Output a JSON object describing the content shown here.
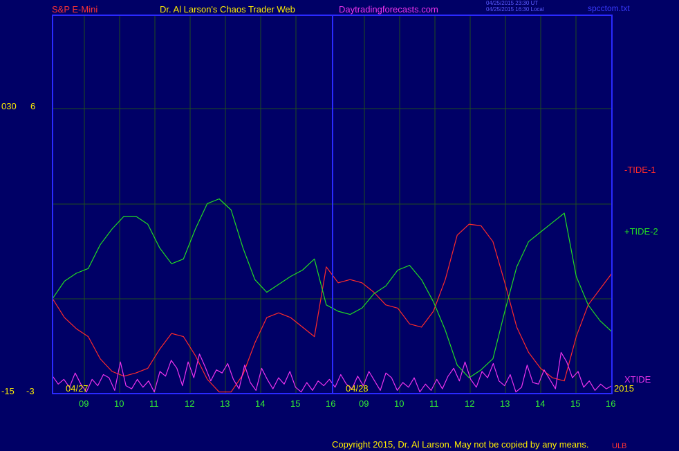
{
  "header": {
    "symbol": "S&P E-Mini",
    "title": "Dr. Al Larson's Chaos Trader Web",
    "site": "Daytradingforecasts.com",
    "ut_time": "04/25/2015 23:30 UT",
    "local_time": "04/25/2015 16:30 Local",
    "file": "spcctom.txt"
  },
  "footer": {
    "copyright": "Copyright 2015, Dr. Al Larson. May not be copied by any means.",
    "mark": "ULB"
  },
  "colors": {
    "background": "#000066",
    "plot_frame": "#2a2aff",
    "grid": "#1f4d1f",
    "tide1": "#ff2a2a",
    "tide2": "#22dd22",
    "xtide": "#ee33ee",
    "axis_text": "#ffee00",
    "hour_text": "#33ee33"
  },
  "chart_data": {
    "type": "line",
    "left_axis_labels": [
      {
        "outer": "030",
        "inner": "6",
        "value": 6
      },
      {
        "outer": "-15",
        "inner": "-3",
        "value": -3
      }
    ],
    "date_labels": [
      "04/27",
      "04/28"
    ],
    "year_label": "2015",
    "x_hour_labels": [
      "09",
      "10",
      "11",
      "12",
      "13",
      "14",
      "15",
      "16",
      "09",
      "10",
      "11",
      "12",
      "13",
      "14",
      "15",
      "16"
    ],
    "series": [
      {
        "name": "-TIDE-1",
        "color": "#ff2a2a",
        "values": [
          0.0,
          -0.6,
          -0.95,
          -1.2,
          -1.9,
          -2.3,
          -2.45,
          -2.35,
          -2.2,
          -1.6,
          -1.1,
          -1.2,
          -1.8,
          -2.55,
          -2.95,
          -2.95,
          -2.4,
          -1.4,
          -0.6,
          -0.45,
          -0.6,
          -0.9,
          -1.2,
          1.0,
          0.5,
          0.6,
          0.5,
          0.2,
          -0.2,
          -0.3,
          -0.8,
          -0.9,
          -0.4,
          0.6,
          2.0,
          2.35,
          2.3,
          1.8,
          0.5,
          -0.9,
          -1.7,
          -2.2,
          -2.5,
          -2.6,
          -1.2,
          -0.2,
          0.3,
          0.8
        ]
      },
      {
        "name": "+TIDE-2",
        "color": "#22dd22",
        "values": [
          0.0,
          0.55,
          0.8,
          0.95,
          1.7,
          2.2,
          2.6,
          2.6,
          2.35,
          1.6,
          1.1,
          1.25,
          2.2,
          3.0,
          3.15,
          2.8,
          1.6,
          0.6,
          0.2,
          0.45,
          0.7,
          0.9,
          1.25,
          -0.2,
          -0.4,
          -0.5,
          -0.3,
          0.15,
          0.4,
          0.9,
          1.05,
          0.6,
          -0.1,
          -1.0,
          -2.1,
          -2.5,
          -2.25,
          -1.9,
          -0.4,
          1.0,
          1.8,
          2.1,
          2.4,
          2.7,
          0.7,
          -0.2,
          -0.7,
          -1.05
        ]
      },
      {
        "name": "XTIDE",
        "color": "#ee33ee",
        "values": [
          -2.45,
          -2.7,
          -2.55,
          -2.8,
          -2.35,
          -2.7,
          -2.95,
          -2.55,
          -2.75,
          -2.4,
          -2.5,
          -2.9,
          -2.0,
          -2.75,
          -2.85,
          -2.55,
          -2.8,
          -2.6,
          -2.95,
          -2.3,
          -2.45,
          -1.95,
          -2.2,
          -2.75,
          -2.0,
          -2.5,
          -1.75,
          -2.15,
          -2.6,
          -2.25,
          -2.35,
          -2.05,
          -2.55,
          -2.85,
          -2.1,
          -2.65,
          -2.9,
          -2.2,
          -2.55,
          -2.85,
          -2.5,
          -2.7,
          -2.3,
          -2.8,
          -2.95,
          -2.65,
          -2.9,
          -2.6,
          -2.75,
          -2.55,
          -2.8,
          -2.4,
          -2.7,
          -2.85,
          -2.45,
          -2.75,
          -2.3,
          -2.6,
          -2.9,
          -2.35,
          -2.5,
          -2.9,
          -2.65,
          -2.8,
          -2.5,
          -2.95,
          -2.7,
          -2.9,
          -2.55,
          -2.85,
          -2.45,
          -2.2,
          -2.6,
          -2.0,
          -2.55,
          -2.8,
          -2.3,
          -2.5,
          -2.05,
          -2.6,
          -2.75,
          -2.4,
          -2.95,
          -2.8,
          -2.1,
          -2.65,
          -2.7,
          -2.25,
          -2.55,
          -2.85,
          -1.7,
          -2.0,
          -2.5,
          -2.3,
          -2.8,
          -2.6,
          -2.9,
          -2.7,
          -2.85,
          -2.75
        ]
      }
    ]
  }
}
